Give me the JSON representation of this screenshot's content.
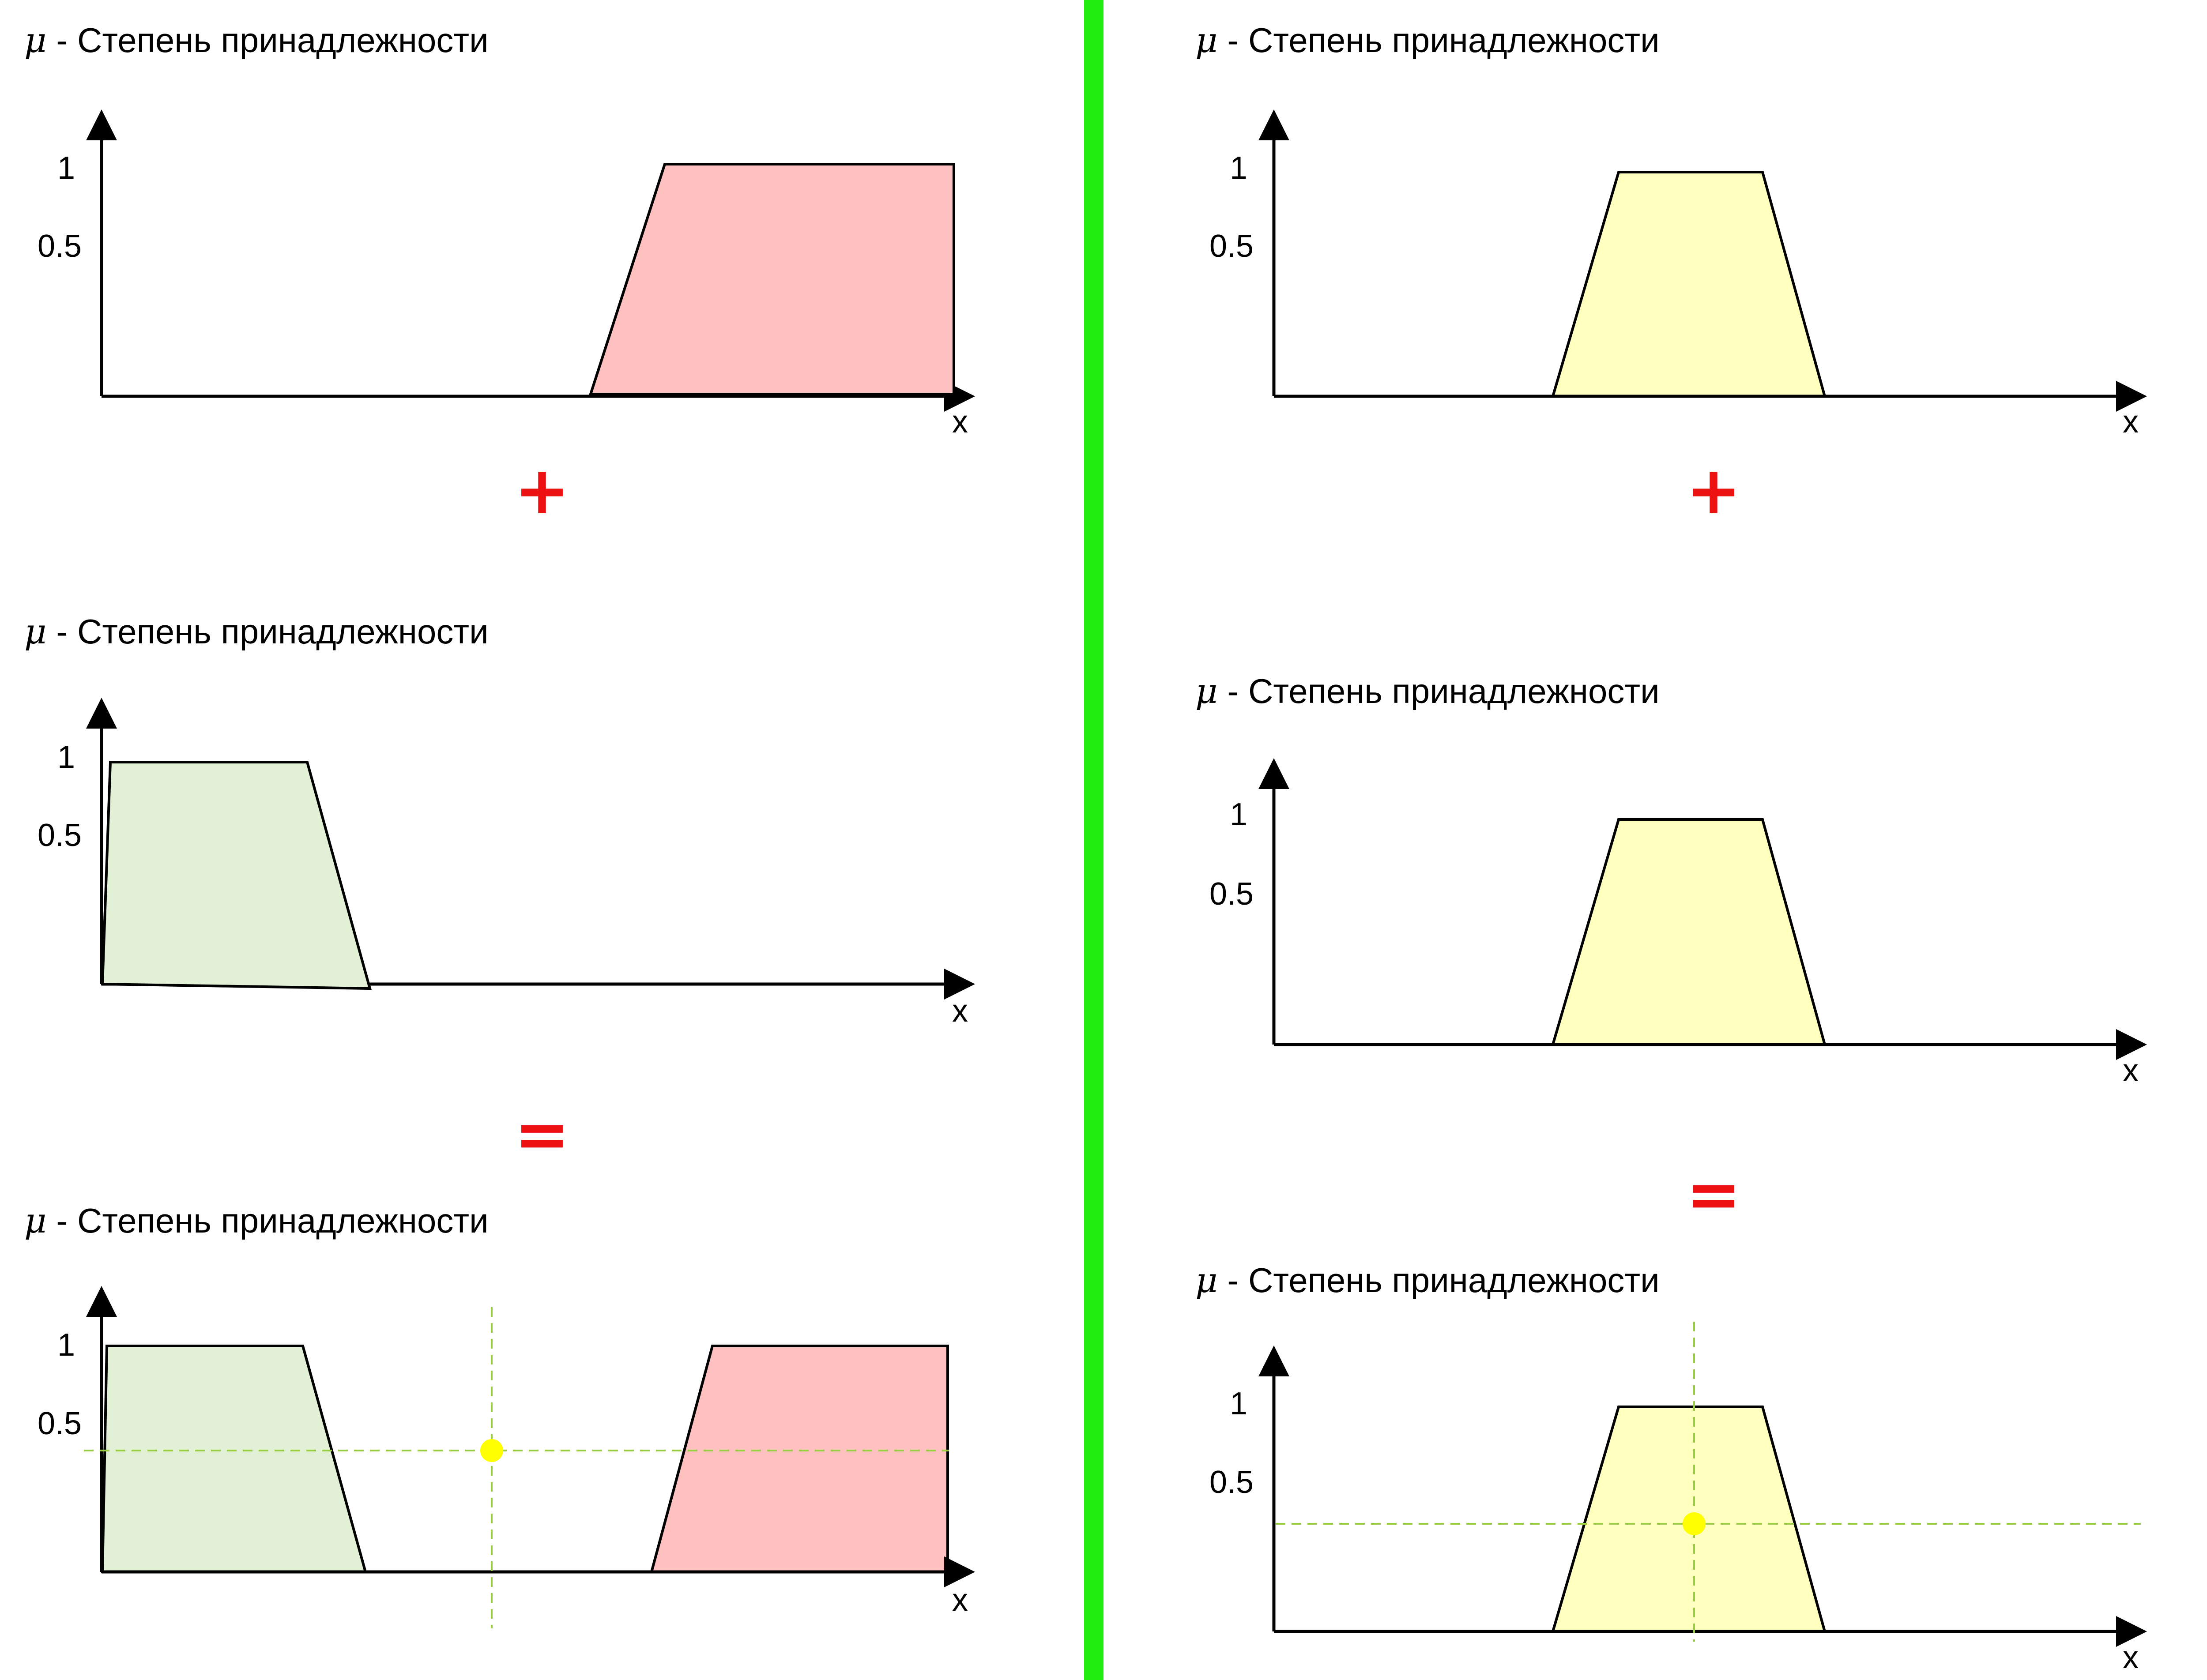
{
  "common": {
    "mu_symbol": "μ",
    "title_text": " - Степень принадлежности",
    "y_tick_1": "1",
    "y_tick_half": "0.5",
    "x_axis_label": "x"
  },
  "operators": {
    "plus": "+",
    "equals": "="
  },
  "colors": {
    "divider": "#22ee11",
    "operator": "#ee1111",
    "pink_fill": "#ffc0c0",
    "green_fill": "#e2f0d6",
    "yellow_fill": "#ffffc0",
    "guide_line": "#99cc44",
    "result_point": "#ffff00"
  },
  "left_column": {
    "panels": [
      {
        "name": "high",
        "shapes": [
          {
            "fill": "pink",
            "points": [
              [
                0.57,
                0
              ],
              [
                0.66,
                1
              ],
              [
                1.0,
                1
              ],
              [
                1.0,
                0
              ]
            ]
          }
        ]
      },
      {
        "name": "low",
        "shapes": [
          {
            "fill": "green",
            "points": [
              [
                0.0,
                0
              ],
              [
                0.01,
                1
              ],
              [
                0.24,
                1
              ],
              [
                0.31,
                0
              ]
            ]
          }
        ]
      },
      {
        "name": "union",
        "shapes": [
          {
            "fill": "green",
            "points": [
              [
                0.0,
                0
              ],
              [
                0.01,
                1
              ],
              [
                0.24,
                1
              ],
              [
                0.31,
                0
              ]
            ]
          },
          {
            "fill": "pink",
            "points": [
              [
                0.64,
                0
              ],
              [
                0.71,
                1
              ],
              [
                1.0,
                1
              ],
              [
                1.0,
                0
              ]
            ]
          }
        ],
        "result": {
          "x": 0.45,
          "mu": 0.53
        }
      }
    ]
  },
  "right_column": {
    "panels": [
      {
        "name": "medium-a",
        "shapes": [
          {
            "fill": "yellow",
            "points": [
              [
                0.33,
                0
              ],
              [
                0.4,
                0.96
              ],
              [
                0.57,
                0.96
              ],
              [
                0.64,
                0
              ]
            ]
          }
        ]
      },
      {
        "name": "medium-b",
        "shapes": [
          {
            "fill": "yellow",
            "points": [
              [
                0.33,
                0
              ],
              [
                0.4,
                0.96
              ],
              [
                0.57,
                0.96
              ],
              [
                0.64,
                0
              ]
            ]
          }
        ]
      },
      {
        "name": "union",
        "shapes": [
          {
            "fill": "yellow",
            "points": [
              [
                0.33,
                0
              ],
              [
                0.4,
                0.96
              ],
              [
                0.57,
                0.96
              ],
              [
                0.64,
                0
              ]
            ]
          }
        ],
        "result": {
          "x": 0.485,
          "mu": 0.47
        }
      }
    ]
  }
}
